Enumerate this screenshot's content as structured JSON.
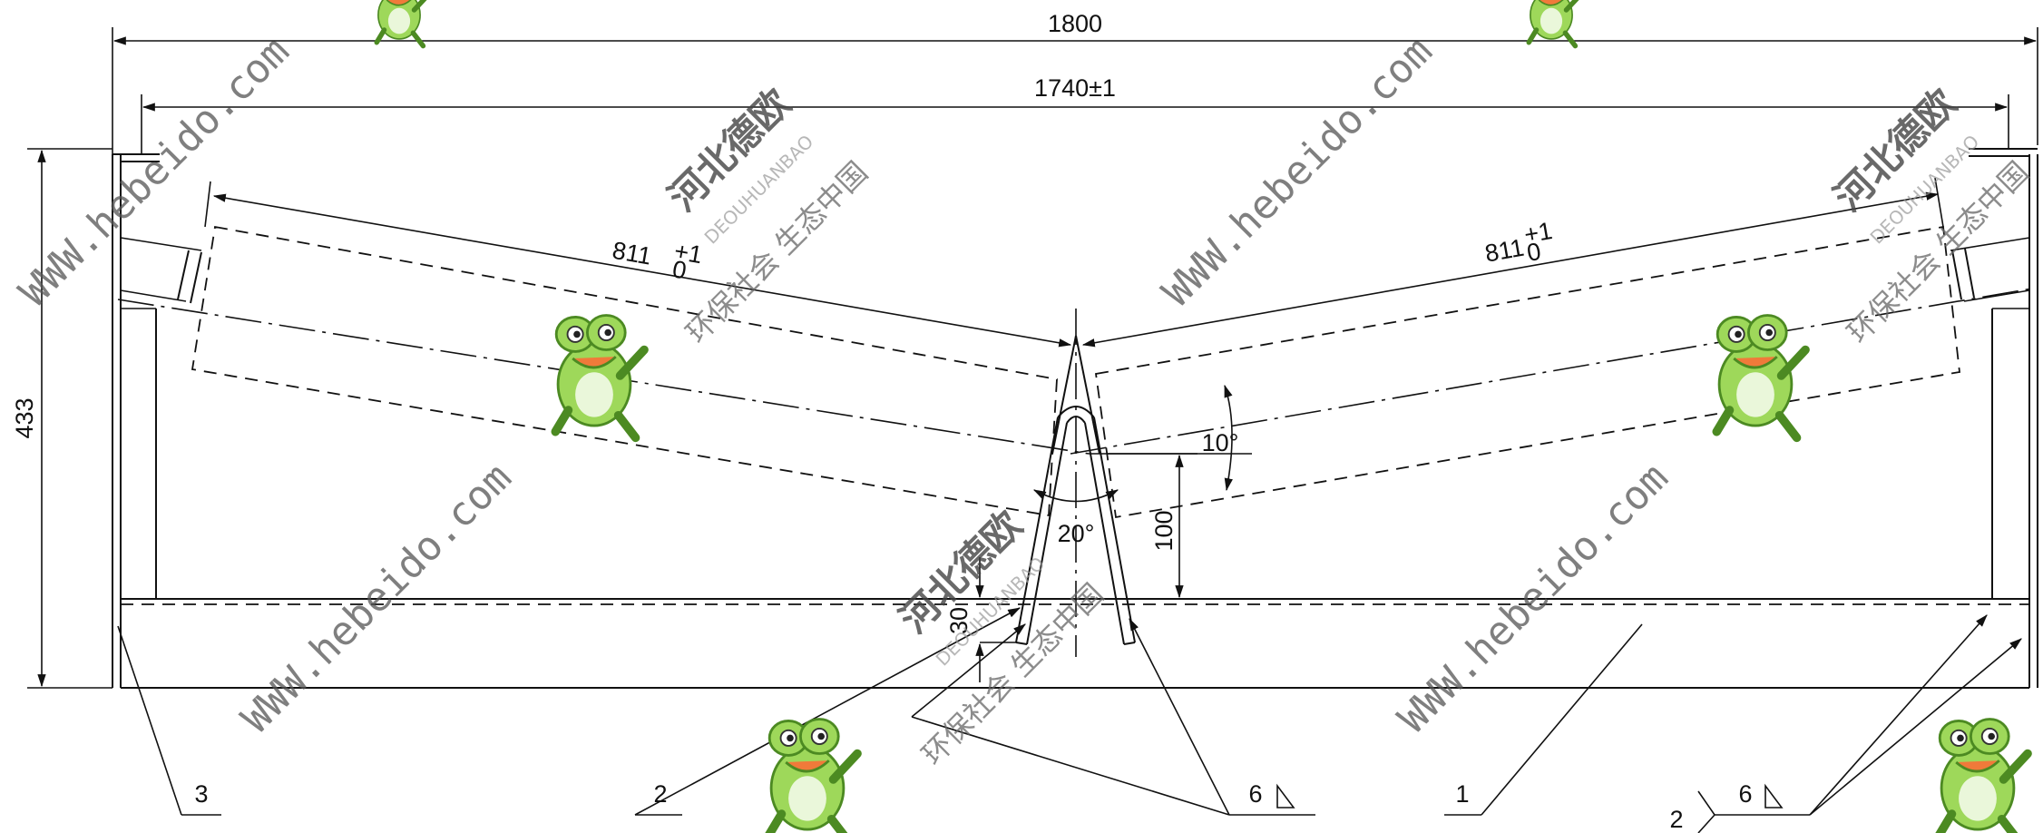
{
  "dimensions": {
    "overall_width": "1800",
    "inner_width": "1740±1",
    "height": "433",
    "roller_length_left": "811",
    "roller_tol_left": "+1",
    "roller_tol_left_lower": "0",
    "roller_length_right": "811",
    "roller_tol_right": "+1",
    "roller_tol_right_lower": "0",
    "trough_angle": "10°",
    "wedge_angle": "20°",
    "center_height": "100",
    "base_height": "30"
  },
  "callouts": {
    "part_3": "3",
    "part_2": "2",
    "part_1": "1",
    "weld_6_center": "6",
    "weld_6_right": "6",
    "weld_2_right": "2"
  },
  "watermark": {
    "url": "WWW.hebeido.com",
    "brand_cn": "河北德欧",
    "brand_en": "DEOUHUANBAO",
    "slogan_cn": "环保社会 生态中国"
  },
  "colors": {
    "line": "#111111",
    "frog_green": "#8fd14f",
    "frog_dark": "#5aa02c"
  }
}
